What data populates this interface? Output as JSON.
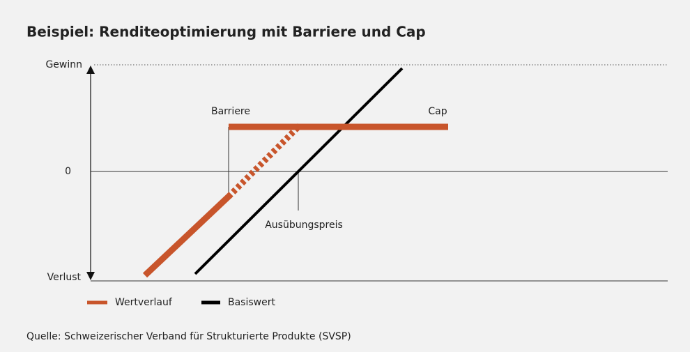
{
  "title": "Beispiel: Renditeoptimierung mit Barriere und Cap",
  "axis": {
    "top": "Gewinn",
    "middle": "0",
    "bottom": "Verlust"
  },
  "annotations": {
    "barrier": "Barriere",
    "cap": "Cap",
    "strike": "Ausübungspreis"
  },
  "legend": [
    "Wertverlauf",
    "Basiswert"
  ],
  "source": "Quelle: Schweizerischer Verband für Strukturierte Produkte (SVSP)"
}
